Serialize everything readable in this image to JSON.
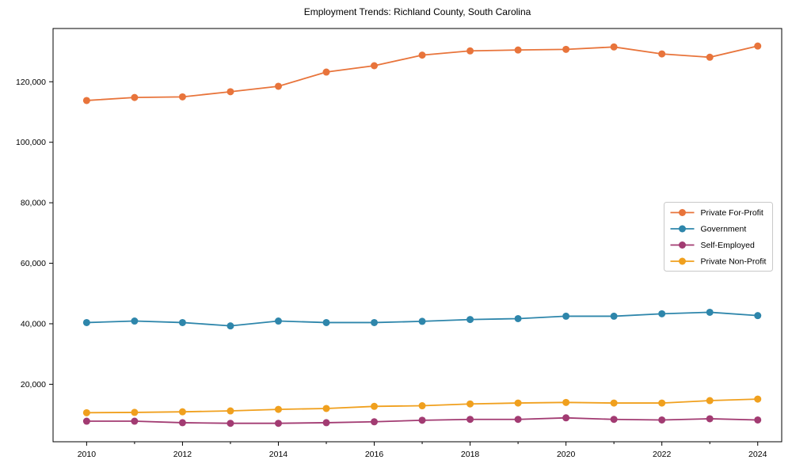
{
  "chart_data": {
    "type": "line",
    "title": "Employment Trends: Richland County, South Carolina",
    "xlabel": "",
    "ylabel": "",
    "grid": false,
    "legend_position": "center right",
    "xlim": [
      2009.3,
      2024.5
    ],
    "ylim": [
      1000,
      137600
    ],
    "x": [
      2010,
      2011,
      2012,
      2013,
      2014,
      2015,
      2016,
      2017,
      2018,
      2019,
      2020,
      2021,
      2022,
      2023,
      2024
    ],
    "x_major_ticks": [
      2010,
      2012,
      2014,
      2016,
      2018,
      2020,
      2022,
      2024
    ],
    "x_tick_labels": [
      "2010",
      "2012",
      "2014",
      "2016",
      "2018",
      "2020",
      "2022",
      "2024"
    ],
    "y_ticks": [
      20000,
      40000,
      60000,
      80000,
      100000,
      120000
    ],
    "y_tick_labels": [
      "20,000",
      "40,000",
      "60,000",
      "80,000",
      "100,000",
      "120,000"
    ],
    "series": [
      {
        "name": "Private For-Profit",
        "color": "#e8743b",
        "values": [
          113800,
          114800,
          115000,
          116700,
          118500,
          123200,
          125300,
          128800,
          130200,
          130500,
          130700,
          131500,
          129200,
          128100,
          131800
        ]
      },
      {
        "name": "Government",
        "color": "#2e86ab",
        "values": [
          40400,
          40900,
          40400,
          39300,
          40900,
          40400,
          40400,
          40800,
          41400,
          41700,
          42500,
          42500,
          43300,
          43800,
          42700
        ]
      },
      {
        "name": "Self-Employed",
        "color": "#a23b72",
        "values": [
          7800,
          7800,
          7300,
          7100,
          7100,
          7300,
          7600,
          8100,
          8400,
          8400,
          8900,
          8400,
          8200,
          8600,
          8200
        ]
      },
      {
        "name": "Private Non-Profit",
        "color": "#f0a01e",
        "values": [
          10600,
          10700,
          10900,
          11200,
          11700,
          12000,
          12700,
          12900,
          13500,
          13800,
          14000,
          13800,
          13800,
          14600,
          15100
        ]
      }
    ]
  }
}
